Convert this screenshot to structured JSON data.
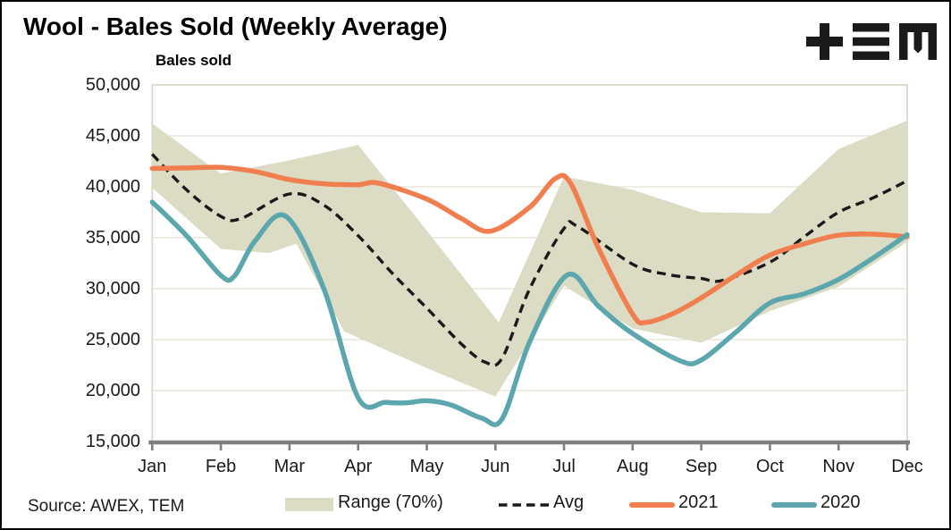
{
  "header": {
    "title": "Wool - Bales Sold (Weekly Average)"
  },
  "footer": {
    "source": "Source: AWEX, TEM"
  },
  "chart_data": {
    "type": "line",
    "title": "Wool - Bales Sold (Weekly Average)",
    "ylabel": "Bales sold",
    "xlabel": "",
    "x_categories": [
      "Jan",
      "Feb",
      "Mar",
      "Apr",
      "May",
      "Jun",
      "Jul",
      "Aug",
      "Sep",
      "Oct",
      "Nov",
      "Dec"
    ],
    "ylim": [
      15000,
      50000
    ],
    "grid": true,
    "legend_position": "bottom",
    "y_ticks": [
      {
        "value": 50000,
        "label": "50,000"
      },
      {
        "value": 45000,
        "label": "45,000"
      },
      {
        "value": 40000,
        "label": "40,000"
      },
      {
        "value": 35000,
        "label": "35,000"
      },
      {
        "value": 30000,
        "label": "30,000"
      },
      {
        "value": 25000,
        "label": "25,000"
      },
      {
        "value": 20000,
        "label": "20,000"
      },
      {
        "value": 15000,
        "label": "15,000"
      }
    ],
    "colors": {
      "band": "#DCDBC4",
      "avg": "#1A1A1A",
      "s2021": "#F07E4E",
      "s2020": "#5CA7AE",
      "gridline": "#E3E2D4",
      "plot_border": "#D5D4C2",
      "axis": "#7F7F7F"
    },
    "legend": {
      "range": "Range (70%)",
      "avg": "Avg",
      "s2021": "2021",
      "s2020": "2020"
    },
    "series": [
      {
        "name": "Range (70%)",
        "type": "band",
        "top": [
          [
            0,
            46200
          ],
          [
            1,
            41300
          ],
          [
            2,
            42600
          ],
          [
            3,
            44100
          ],
          [
            4,
            35700
          ],
          [
            5.05,
            26700
          ],
          [
            6,
            41000
          ],
          [
            7,
            39700
          ],
          [
            8,
            37500
          ],
          [
            9,
            37400
          ],
          [
            10,
            43700
          ],
          [
            11,
            46500
          ]
        ],
        "bottom": [
          [
            0,
            39900
          ],
          [
            1,
            33900
          ],
          [
            1.7,
            33500
          ],
          [
            2.1,
            34400
          ],
          [
            2.8,
            25800
          ],
          [
            3,
            25200
          ],
          [
            4,
            22200
          ],
          [
            5,
            19400
          ],
          [
            6,
            30300
          ],
          [
            7,
            26100
          ],
          [
            8,
            24700
          ],
          [
            9,
            27800
          ],
          [
            10,
            30200
          ],
          [
            11,
            34600
          ]
        ]
      },
      {
        "name": "Avg",
        "type": "line",
        "style": "dashed",
        "points": [
          [
            0,
            43200
          ],
          [
            0.5,
            39700
          ],
          [
            1,
            37100
          ],
          [
            1.3,
            36900
          ],
          [
            2,
            39300
          ],
          [
            2.5,
            38200
          ],
          [
            3,
            35200
          ],
          [
            3.5,
            31500
          ],
          [
            4,
            28100
          ],
          [
            4.5,
            24600
          ],
          [
            4.85,
            22800
          ],
          [
            5.1,
            23200
          ],
          [
            5.5,
            30000
          ],
          [
            6,
            35900
          ],
          [
            6.2,
            36100
          ],
          [
            7,
            32400
          ],
          [
            7.5,
            31400
          ],
          [
            8,
            31000
          ],
          [
            8.3,
            30800
          ],
          [
            9,
            32600
          ],
          [
            9.5,
            35100
          ],
          [
            10,
            37500
          ],
          [
            10.5,
            38900
          ],
          [
            11,
            40600
          ]
        ]
      },
      {
        "name": "2021",
        "type": "line",
        "style": "solid",
        "points": [
          [
            0,
            41800
          ],
          [
            0.5,
            41850
          ],
          [
            1,
            41900
          ],
          [
            1.5,
            41500
          ],
          [
            2,
            40700
          ],
          [
            2.5,
            40300
          ],
          [
            3,
            40200
          ],
          [
            3.3,
            40350
          ],
          [
            4,
            38800
          ],
          [
            4.5,
            36900
          ],
          [
            4.93,
            35650
          ],
          [
            5.5,
            38000
          ],
          [
            5.87,
            40800
          ],
          [
            6.1,
            40300
          ],
          [
            6.5,
            34000
          ],
          [
            7,
            27500
          ],
          [
            7.2,
            26700
          ],
          [
            7.6,
            27600
          ],
          [
            8,
            29100
          ],
          [
            8.5,
            31300
          ],
          [
            9,
            33300
          ],
          [
            9.5,
            34400
          ],
          [
            10,
            35250
          ],
          [
            10.5,
            35350
          ],
          [
            11,
            35100
          ]
        ]
      },
      {
        "name": "2020",
        "type": "line",
        "style": "solid",
        "points": [
          [
            0,
            38500
          ],
          [
            0.5,
            35200
          ],
          [
            1,
            31300
          ],
          [
            1.2,
            31250
          ],
          [
            1.5,
            34700
          ],
          [
            1.95,
            37100
          ],
          [
            2.5,
            30000
          ],
          [
            3,
            19300
          ],
          [
            3.4,
            18850
          ],
          [
            3.7,
            18800
          ],
          [
            4,
            19000
          ],
          [
            4.35,
            18600
          ],
          [
            4.8,
            17300
          ],
          [
            5.1,
            17250
          ],
          [
            5.5,
            24800
          ],
          [
            6.05,
            31350
          ],
          [
            6.5,
            28300
          ],
          [
            7,
            25600
          ],
          [
            7.7,
            22900
          ],
          [
            8,
            23000
          ],
          [
            8.5,
            25700
          ],
          [
            9,
            28600
          ],
          [
            9.5,
            29500
          ],
          [
            10,
            30900
          ],
          [
            10.5,
            33000
          ],
          [
            11,
            35300
          ]
        ]
      }
    ]
  }
}
